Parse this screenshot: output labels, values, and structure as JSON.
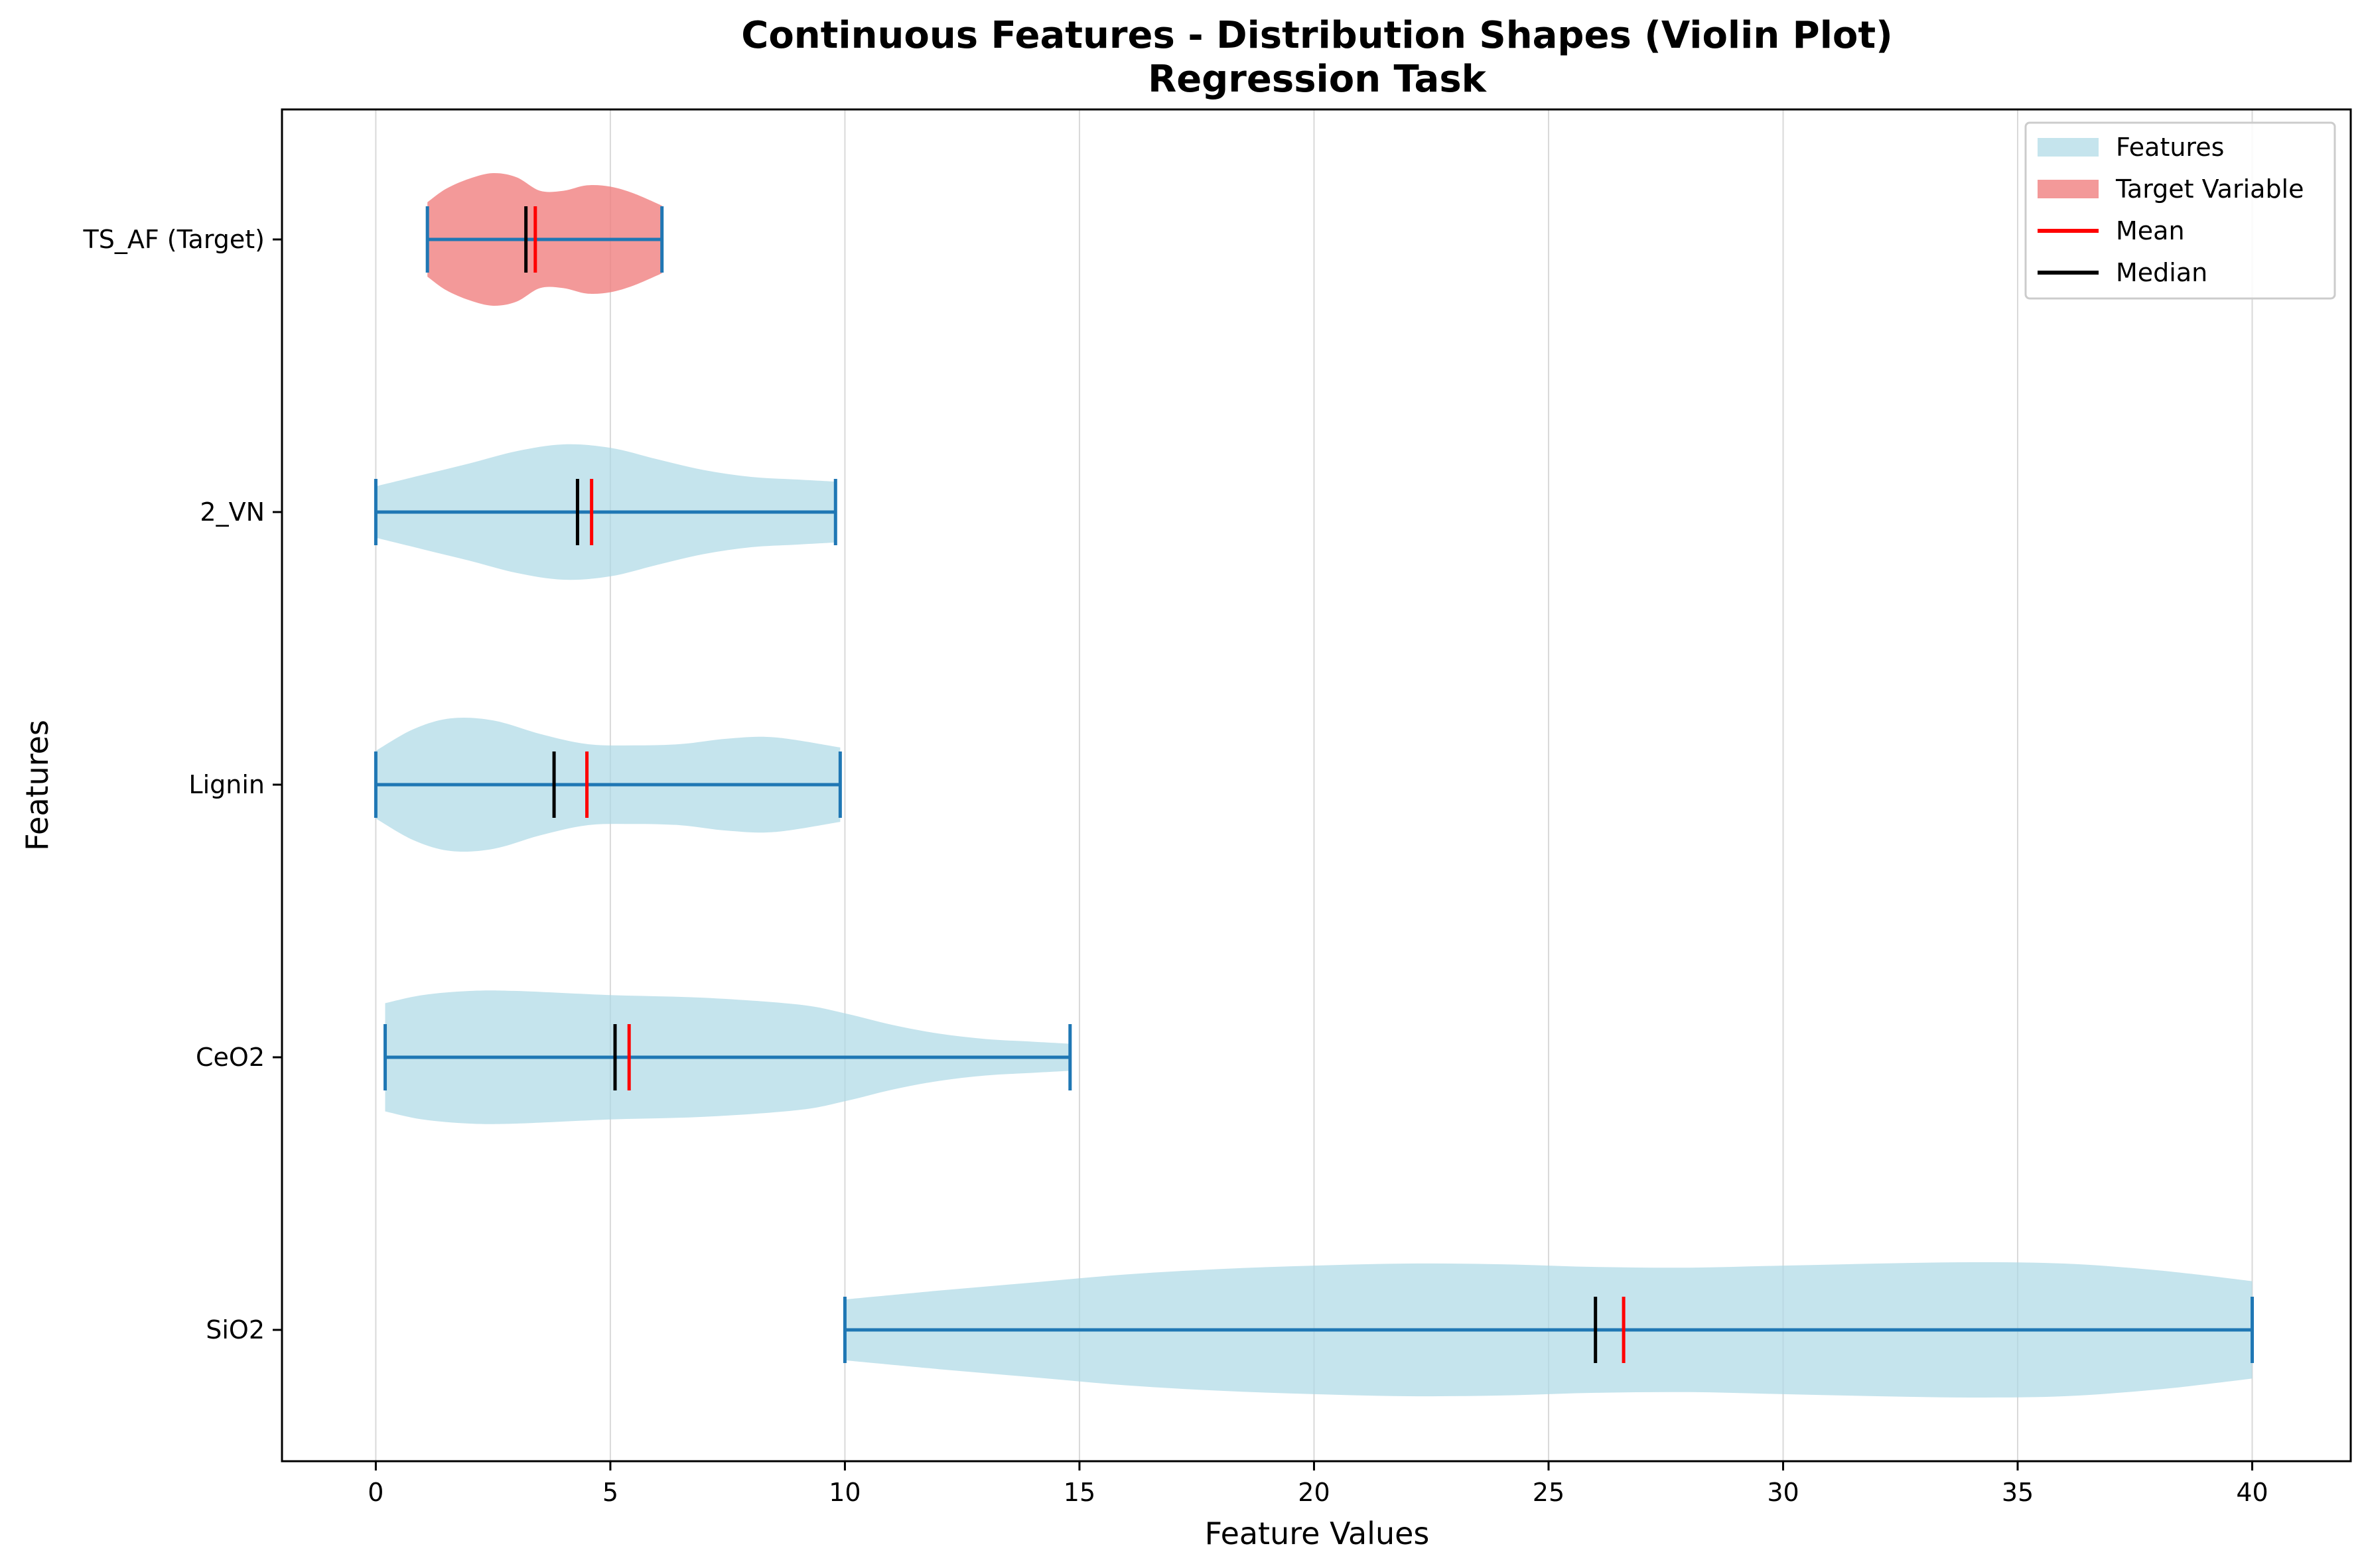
{
  "chart_data": {
    "type": "violin",
    "orientation": "horizontal",
    "title": "Continuous Features - Distribution Shapes (Violin Plot)",
    "subtitle": "Regression Task",
    "xlabel": "Feature Values",
    "ylabel": "Features",
    "xlim": [
      -2,
      42.1
    ],
    "xticks": [
      0,
      5,
      10,
      15,
      20,
      25,
      30,
      35,
      40
    ],
    "xtick_labels": [
      "0",
      "5",
      "10",
      "15",
      "20",
      "25",
      "30",
      "35",
      "40"
    ],
    "grid": "vertical",
    "legend_position": "upper right",
    "legend": [
      {
        "label": "Features",
        "kind": "patch",
        "color": "#add8e6"
      },
      {
        "label": "Target Variable",
        "kind": "patch",
        "color": "#f08080"
      },
      {
        "label": "Mean",
        "kind": "line",
        "color": "#ff0000"
      },
      {
        "label": "Median",
        "kind": "line",
        "color": "#000000"
      }
    ],
    "colors": {
      "feature_fill": "#add8e6",
      "target_fill": "#f08080",
      "range_line": "#1f77b4",
      "mean": "#ff0000",
      "median": "#000000",
      "grid": "#d9d9d9"
    },
    "series": [
      {
        "name": "TS_AF (Target)",
        "role": "target",
        "min": 1.1,
        "max": 6.1,
        "median": 3.2,
        "mean": 3.4,
        "profile": [
          [
            1.1,
            0.55
          ],
          [
            1.5,
            0.75
          ],
          [
            2.0,
            0.9
          ],
          [
            2.5,
            0.98
          ],
          [
            3.0,
            0.92
          ],
          [
            3.5,
            0.72
          ],
          [
            4.0,
            0.72
          ],
          [
            4.5,
            0.8
          ],
          [
            5.0,
            0.78
          ],
          [
            5.5,
            0.68
          ],
          [
            6.1,
            0.5
          ]
        ]
      },
      {
        "name": "2_VN",
        "role": "feature",
        "min": 0.0,
        "max": 9.8,
        "median": 4.3,
        "mean": 4.6,
        "profile": [
          [
            0,
            0.38
          ],
          [
            1,
            0.55
          ],
          [
            2,
            0.72
          ],
          [
            3,
            0.9
          ],
          [
            4,
            1.0
          ],
          [
            5,
            0.95
          ],
          [
            6,
            0.78
          ],
          [
            7,
            0.62
          ],
          [
            8,
            0.52
          ],
          [
            9,
            0.48
          ],
          [
            9.8,
            0.45
          ]
        ]
      },
      {
        "name": "Lignin",
        "role": "feature",
        "min": 0.0,
        "max": 9.9,
        "median": 3.8,
        "mean": 4.5,
        "profile": [
          [
            0,
            0.5
          ],
          [
            0.8,
            0.82
          ],
          [
            1.6,
            0.98
          ],
          [
            2.5,
            0.95
          ],
          [
            3.5,
            0.75
          ],
          [
            4.5,
            0.6
          ],
          [
            5.5,
            0.58
          ],
          [
            6.5,
            0.6
          ],
          [
            7.5,
            0.68
          ],
          [
            8.5,
            0.7
          ],
          [
            9.9,
            0.55
          ]
        ]
      },
      {
        "name": "CeO2",
        "role": "feature",
        "min": 0.2,
        "max": 14.8,
        "median": 5.1,
        "mean": 5.4,
        "profile": [
          [
            0.2,
            0.8
          ],
          [
            1,
            0.92
          ],
          [
            2,
            0.98
          ],
          [
            3,
            0.98
          ],
          [
            5,
            0.92
          ],
          [
            7,
            0.88
          ],
          [
            9,
            0.78
          ],
          [
            10,
            0.65
          ],
          [
            11,
            0.48
          ],
          [
            12,
            0.35
          ],
          [
            13,
            0.27
          ],
          [
            14,
            0.23
          ],
          [
            14.8,
            0.2
          ]
        ]
      },
      {
        "name": "SiO2",
        "role": "feature",
        "min": 10.0,
        "max": 40.0,
        "median": 26.0,
        "mean": 26.6,
        "profile": [
          [
            10,
            0.45
          ],
          [
            12,
            0.58
          ],
          [
            14,
            0.7
          ],
          [
            16,
            0.82
          ],
          [
            18,
            0.9
          ],
          [
            20,
            0.95
          ],
          [
            22,
            0.98
          ],
          [
            24,
            0.97
          ],
          [
            26,
            0.93
          ],
          [
            28,
            0.92
          ],
          [
            30,
            0.95
          ],
          [
            32,
            0.98
          ],
          [
            34,
            1.0
          ],
          [
            36,
            0.98
          ],
          [
            38,
            0.88
          ],
          [
            40,
            0.72
          ]
        ]
      }
    ]
  }
}
